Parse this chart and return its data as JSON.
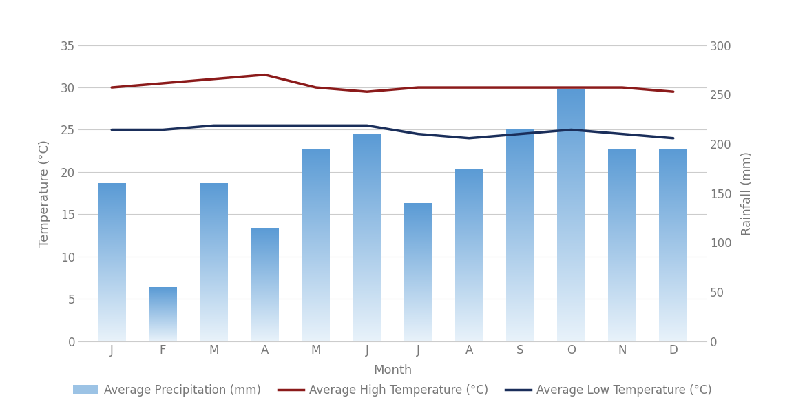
{
  "months": [
    "J",
    "F",
    "M",
    "A",
    "M",
    "J",
    "J",
    "A",
    "S",
    "O",
    "N",
    "D"
  ],
  "precipitation_left": [
    18.67,
    6.42,
    18.67,
    13.42,
    22.75,
    24.5,
    16.33,
    20.42,
    25.08,
    29.75,
    22.75,
    22.75
  ],
  "high_temp": [
    30.0,
    30.5,
    31.0,
    31.5,
    30.0,
    29.5,
    30.0,
    30.0,
    30.0,
    30.0,
    30.0,
    29.5
  ],
  "low_temp": [
    25.0,
    25.0,
    25.5,
    25.5,
    25.5,
    25.5,
    24.5,
    24.0,
    24.5,
    25.0,
    24.5,
    24.0
  ],
  "bar_color_bottom": "#5b9bd5",
  "bar_color_top": "#e8f2fa",
  "high_temp_color": "#8b1a1a",
  "low_temp_color": "#1a2e5a",
  "xlabel": "Month",
  "ylabel_left": "Temperature (°C)",
  "ylabel_right": "Rainfall (mm)",
  "ylim_left": [
    0,
    35
  ],
  "ylim_right": [
    0,
    300
  ],
  "yticks_left": [
    0,
    5,
    10,
    15,
    20,
    25,
    30,
    35
  ],
  "yticks_right": [
    0,
    50,
    100,
    150,
    200,
    250,
    300
  ],
  "legend_labels": [
    "Average Precipitation (mm)",
    "Average High Temperature (°C)",
    "Average Low Temperature (°C)"
  ],
  "background_color": "#ffffff",
  "grid_color": "#cccccc",
  "label_fontsize": 13,
  "tick_fontsize": 12,
  "legend_fontsize": 12,
  "text_color": "#777777"
}
